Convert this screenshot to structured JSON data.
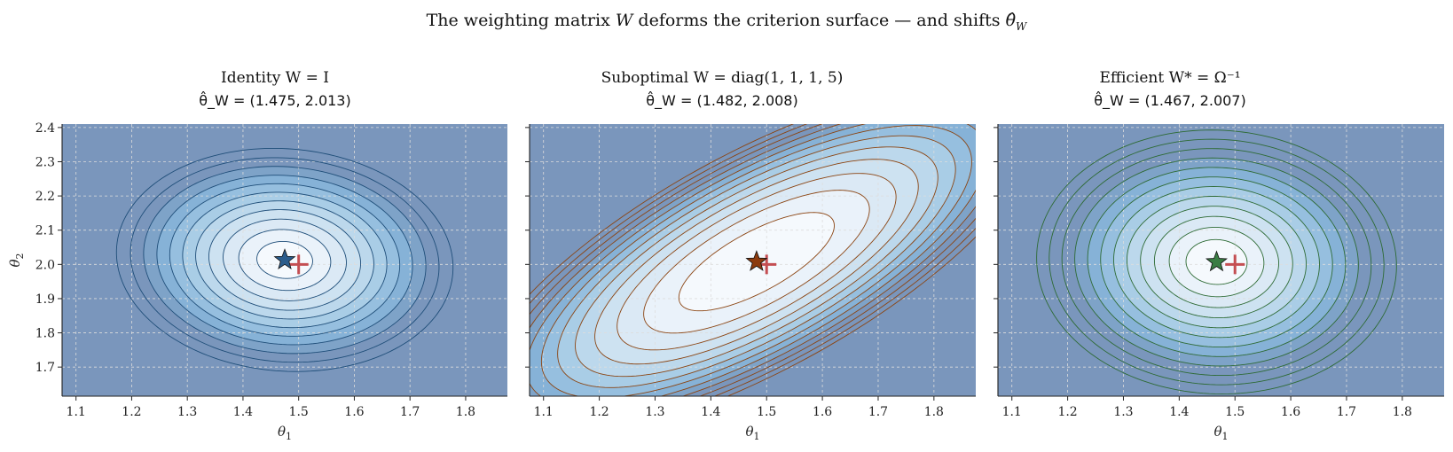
{
  "figure": {
    "title": "The weighting matrix W deforms the criterion surface — and shifts θ̂_W",
    "title_parts": {
      "pre": "The weighting matrix ",
      "w": "W",
      "mid": " deforms the criterion surface — and shifts ",
      "theta": "θ̂",
      "sub": "W"
    }
  },
  "colors": {
    "fill_scale": [
      "#f5f9fd",
      "#eaf2fa",
      "#dbe9f5",
      "#cde2f1",
      "#bcd8ec",
      "#a9cde6",
      "#96bfdf",
      "#86b2d7",
      "#7ea3c8",
      "#7a96bc"
    ],
    "marker_cross": "#c44e52",
    "axis": "#222222",
    "grid": "#dddddd"
  },
  "chart_data": [
    {
      "type": "contour",
      "title_line1": "Identity   W = I",
      "title_line2": "θ̂_W = (1.475, 2.013)",
      "xlabel": "θ1",
      "ylabel": "θ2",
      "xlim": [
        1.075,
        1.875
      ],
      "ylim": [
        1.615,
        2.41
      ],
      "xticks": [
        1.1,
        1.2,
        1.3,
        1.4,
        1.5,
        1.6,
        1.7,
        1.8
      ],
      "yticks": [
        1.7,
        1.8,
        1.9,
        2.0,
        2.1,
        2.2,
        2.3,
        2.4
      ],
      "show_yticklabels": true,
      "contour_color": "#1f4e79",
      "star_color": "#2a5c8c",
      "estimate": [
        1.475,
        2.013
      ],
      "truth": [
        1.5,
        2.0
      ],
      "surface": {
        "a": 1.0,
        "b": 0.125,
        "c": 0.86,
        "center": [
          1.475,
          2.013
        ]
      },
      "contour_levels": [
        0.0025,
        0.0068,
        0.0122,
        0.0185,
        0.0255,
        0.0335,
        0.0425,
        0.0525,
        0.064,
        0.0765,
        0.091
      ],
      "grid": true
    },
    {
      "type": "contour",
      "title_line1": "Suboptimal W = diag(1, 1, 1, 5)",
      "title_line2": "θ̂_W = (1.482, 2.008)",
      "xlabel": "θ1",
      "ylabel": "",
      "xlim": [
        1.075,
        1.875
      ],
      "ylim": [
        1.615,
        2.41
      ],
      "xticks": [
        1.1,
        1.2,
        1.3,
        1.4,
        1.5,
        1.6,
        1.7,
        1.8
      ],
      "yticks": [
        1.7,
        1.8,
        1.9,
        2.0,
        2.1,
        2.2,
        2.3,
        2.4
      ],
      "show_yticklabels": false,
      "contour_color": "#8b4513",
      "star_color": "#8b3a0e",
      "estimate": [
        1.482,
        2.008
      ],
      "truth": [
        1.5,
        2.0
      ],
      "surface": {
        "a": 1.0,
        "b": -1.42,
        "c": 0.94,
        "center": [
          1.482,
          2.008
        ]
      },
      "contour_levels": [
        0.009,
        0.019,
        0.029,
        0.039,
        0.049,
        0.059,
        0.069,
        0.079,
        0.089,
        0.099,
        0.109,
        0.119
      ],
      "grid": true
    },
    {
      "type": "contour",
      "title_line1": "Efficient  W* = Ω⁻¹",
      "title_line2": "θ̂_W = (1.467, 2.007)",
      "xlabel": "θ1",
      "ylabel": "",
      "xlim": [
        1.075,
        1.875
      ],
      "ylim": [
        1.615,
        2.41
      ],
      "xticks": [
        1.1,
        1.2,
        1.3,
        1.4,
        1.5,
        1.6,
        1.7,
        1.8
      ],
      "yticks": [
        1.7,
        1.8,
        1.9,
        2.0,
        2.1,
        2.2,
        2.3,
        2.4
      ],
      "show_yticklabels": false,
      "contour_color": "#2e6b35",
      "star_color": "#3a7d44",
      "estimate": [
        1.467,
        2.007
      ],
      "truth": [
        1.5,
        2.0
      ],
      "surface": {
        "a": 1.0,
        "b": 0.05,
        "c": 0.7,
        "center": [
          1.467,
          2.007
        ]
      },
      "contour_levels": [
        0.003,
        0.0072,
        0.0124,
        0.0186,
        0.0258,
        0.034,
        0.0432,
        0.0534,
        0.0646,
        0.0768,
        0.09,
        0.104
      ],
      "grid": true
    }
  ]
}
